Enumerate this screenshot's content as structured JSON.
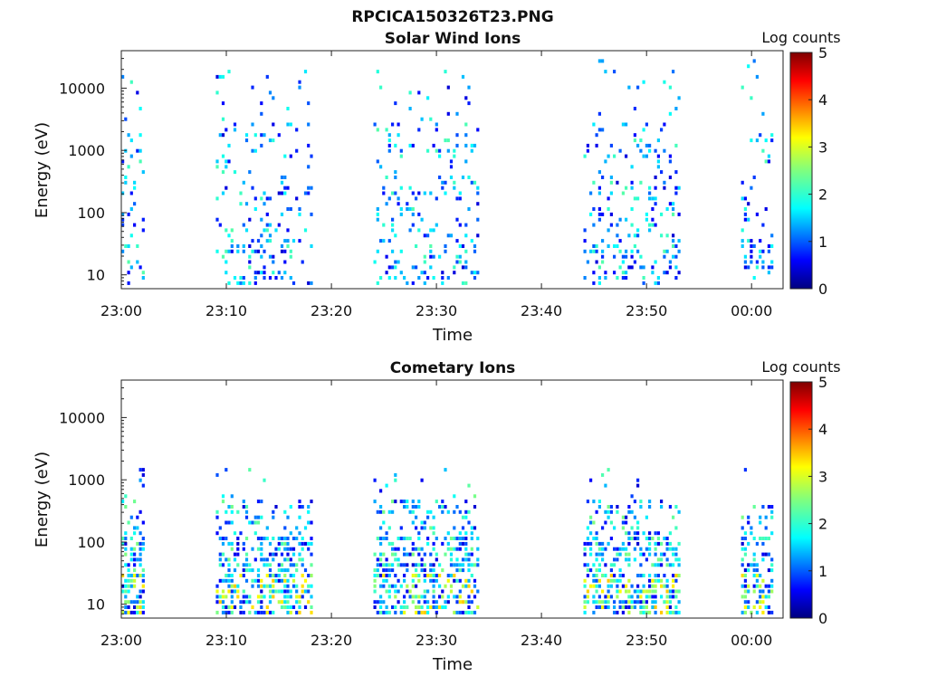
{
  "figure": {
    "title": "RPCICA150326T23.PNG"
  },
  "colorbar": {
    "label": "Log counts",
    "ticks": [
      "5",
      "4",
      "3",
      "2",
      "1",
      "0"
    ],
    "range": [
      0,
      5
    ],
    "colormap": "jet"
  },
  "chart_data": [
    {
      "type": "heatmap",
      "title": "Solar Wind Ions",
      "xlabel": "Time",
      "ylabel": "Energy (eV)",
      "yscale": "log",
      "ylim": [
        6,
        40000
      ],
      "xlim": [
        "23:00",
        "00:03"
      ],
      "x_ticks": [
        "23:00",
        "23:10",
        "23:20",
        "23:30",
        "23:40",
        "23:50",
        "00:00"
      ],
      "y_ticks": [
        "10",
        "100",
        "1000",
        "10000"
      ],
      "colorbar_label": "Log counts",
      "color_range": [
        0,
        5
      ],
      "bursts": [
        {
          "start": "23:00",
          "end": "23:02"
        },
        {
          "start": "23:09",
          "end": "23:18"
        },
        {
          "start": "23:24",
          "end": "23:34"
        },
        {
          "start": "23:44",
          "end": "23:53"
        },
        {
          "start": "23:59",
          "end": "00:02"
        }
      ]
    },
    {
      "type": "heatmap",
      "title": "Cometary Ions",
      "xlabel": "Time",
      "ylabel": "Energy (eV)",
      "yscale": "log",
      "ylim": [
        6,
        40000
      ],
      "xlim": [
        "23:00",
        "00:03"
      ],
      "x_ticks": [
        "23:00",
        "23:10",
        "23:20",
        "23:30",
        "23:40",
        "23:50",
        "00:00"
      ],
      "y_ticks": [
        "10",
        "100",
        "1000",
        "10000"
      ],
      "colorbar_label": "Log counts",
      "color_range": [
        0,
        5
      ],
      "bursts": [
        {
          "start": "23:00",
          "end": "23:02"
        },
        {
          "start": "23:09",
          "end": "23:18"
        },
        {
          "start": "23:24",
          "end": "23:34"
        },
        {
          "start": "23:44",
          "end": "23:53"
        },
        {
          "start": "23:59",
          "end": "00:02"
        }
      ]
    }
  ]
}
